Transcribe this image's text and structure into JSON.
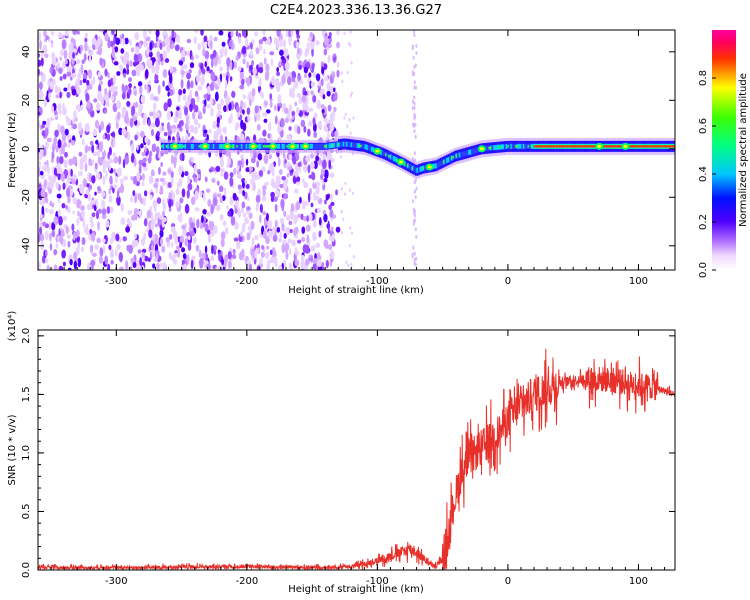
{
  "title": "C2E4.2023.336.13.36.G27",
  "chart_data": [
    {
      "type": "heatmap",
      "xlabel": "Height of straight line (km)",
      "ylabel": "Frequency (Hz)",
      "xlim": [
        -360,
        128
      ],
      "ylim": [
        -50,
        49
      ],
      "x_ticks": [
        -300,
        -200,
        -100,
        0,
        100
      ],
      "y_ticks": [
        -40,
        -20,
        0,
        20,
        40
      ],
      "colorbar": {
        "label": "Normalized spectral amplitude",
        "range": [
          0.0,
          1.0
        ],
        "ticks": [
          "0.0",
          "0.2",
          "0.4",
          "0.6",
          "0.8"
        ]
      },
      "colors": [
        "#ffffff",
        "#e6c8ff",
        "#8a2be2",
        "#1a00ff",
        "#00c8ff",
        "#00ff66",
        "#ffff00",
        "#ff2020"
      ],
      "ridge": {
        "x": [
          -265,
          -200,
          -140,
          -125,
          -110,
          -95,
          -80,
          -70,
          -65,
          -55,
          -40,
          -20,
          0,
          30,
          80,
          128
        ],
        "frequency": [
          1,
          1,
          1,
          2,
          1,
          -2,
          -6,
          -9,
          -8,
          -7,
          -3,
          0,
          1,
          1,
          1,
          1
        ]
      }
    },
    {
      "type": "line",
      "xlabel": "Height of straight line (km)",
      "ylabel": "SNR (10 * v/v)",
      "y_multiplier": "(x10⁴)",
      "xlim": [
        -360,
        128
      ],
      "ylim": [
        0,
        2.05
      ],
      "x_ticks": [
        -300,
        -200,
        -100,
        0,
        100
      ],
      "y_ticks": [
        "0.0",
        "0.5",
        "1.0",
        "1.5",
        "2.0"
      ],
      "series": [
        {
          "color": "#e8302a",
          "x": [
            -360,
            -300,
            -200,
            -150,
            -120,
            -110,
            -100,
            -95,
            -90,
            -85,
            -80,
            -75,
            -70,
            -65,
            -60,
            -55,
            -50,
            -45,
            -40,
            -35,
            -30,
            -25,
            -20,
            -15,
            -10,
            -5,
            0,
            10,
            20,
            30,
            40,
            50,
            60,
            70,
            80,
            90,
            100,
            110,
            128
          ],
          "values": [
            0.02,
            0.02,
            0.03,
            0.02,
            0.03,
            0.05,
            0.08,
            0.1,
            0.12,
            0.14,
            0.16,
            0.18,
            0.15,
            0.1,
            0.05,
            0.03,
            0.1,
            0.35,
            0.65,
            0.85,
            0.95,
            1.0,
            1.05,
            1.1,
            1.15,
            1.2,
            1.3,
            1.4,
            1.5,
            1.55,
            1.6,
            1.62,
            1.63,
            1.63,
            1.62,
            1.6,
            1.58,
            1.57,
            1.5
          ]
        }
      ]
    }
  ]
}
